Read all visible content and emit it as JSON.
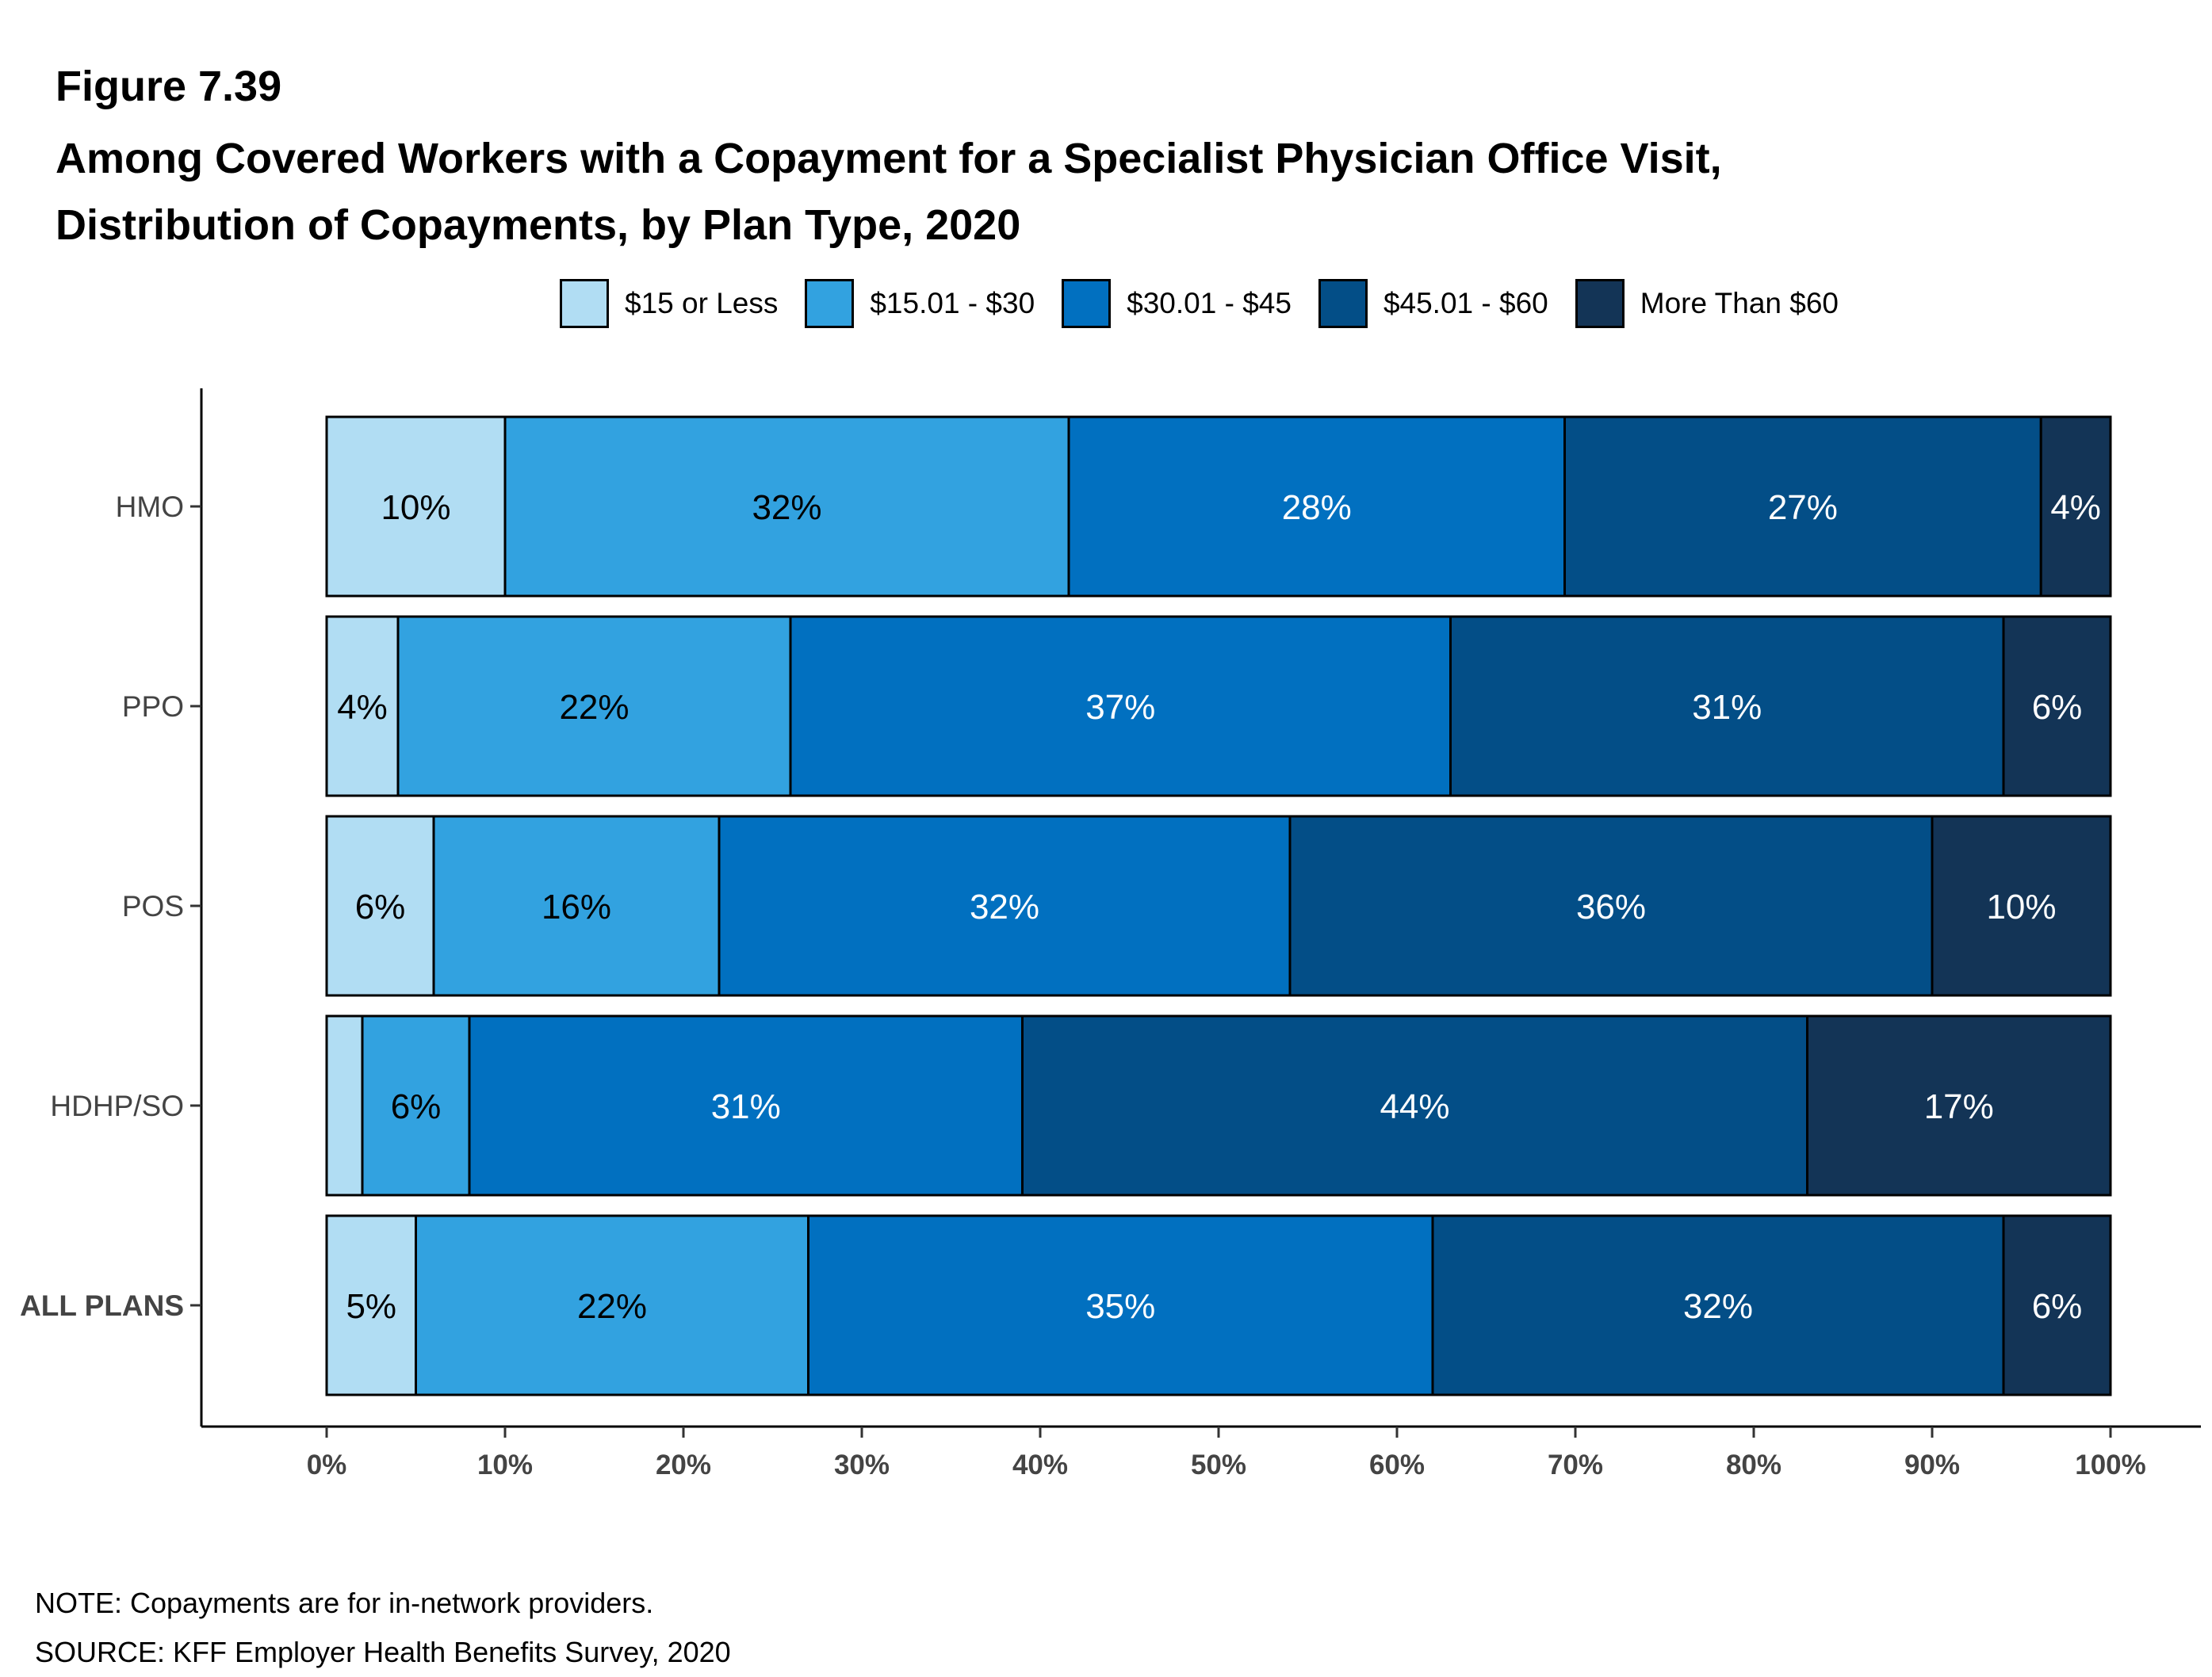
{
  "figure_label": "Figure 7.39",
  "title_line1": "Among Covered Workers with a Copayment for a Specialist Physician Office Visit,",
  "title_line2": "Distribution of Copayments, by Plan Type, 2020",
  "note": "NOTE: Copayments are for in-network providers.",
  "source": "SOURCE: KFF Employer Health Benefits Survey, 2020",
  "legend": [
    {
      "label": "$15 or Less",
      "color": "#b1ddf3"
    },
    {
      "label": "$15.01 - $30",
      "color": "#32a2e0"
    },
    {
      "label": "$30.01 - $45",
      "color": "#0170c0"
    },
    {
      "label": "$45.01 - $60",
      "color": "#034e87"
    },
    {
      "label": "More Than $60",
      "color": "#133456"
    }
  ],
  "chart_data": {
    "type": "bar",
    "orientation": "horizontal",
    "stacked": true,
    "categories": [
      "HMO",
      "PPO",
      "POS",
      "HDHP/SO",
      "ALL PLANS"
    ],
    "category_bold": [
      false,
      false,
      false,
      false,
      true
    ],
    "series": [
      {
        "name": "$15 or Less",
        "color": "#b1ddf3",
        "label_color": "#000000",
        "values": [
          10,
          4,
          6,
          2,
          5
        ],
        "labels": [
          "10%",
          "4%",
          "6%",
          "",
          "5%"
        ]
      },
      {
        "name": "$15.01 - $30",
        "color": "#32a2e0",
        "label_color": "#000000",
        "values": [
          31.6,
          22,
          16,
          6,
          22
        ],
        "labels": [
          "32%",
          "22%",
          "16%",
          "6%",
          "22%"
        ]
      },
      {
        "name": "$30.01 - $45",
        "color": "#0170c0",
        "label_color": "#ffffff",
        "values": [
          27.8,
          37,
          32,
          31,
          35
        ],
        "labels": [
          "28%",
          "37%",
          "32%",
          "31%",
          "35%"
        ]
      },
      {
        "name": "$45.01 - $60",
        "color": "#034e87",
        "label_color": "#ffffff",
        "values": [
          26.7,
          31,
          36,
          44,
          32
        ],
        "labels": [
          "27%",
          "31%",
          "36%",
          "44%",
          "32%"
        ]
      },
      {
        "name": "More Than $60",
        "color": "#133456",
        "label_color": "#ffffff",
        "values": [
          3.9,
          6,
          10,
          17,
          6
        ],
        "labels": [
          "4%",
          "6%",
          "10%",
          "17%",
          "6%"
        ]
      }
    ],
    "x_ticks": [
      "0%",
      "10%",
      "20%",
      "30%",
      "40%",
      "50%",
      "60%",
      "70%",
      "80%",
      "90%",
      "100%"
    ],
    "xlim": [
      0,
      100
    ],
    "grid": false,
    "legend_position": "top"
  }
}
